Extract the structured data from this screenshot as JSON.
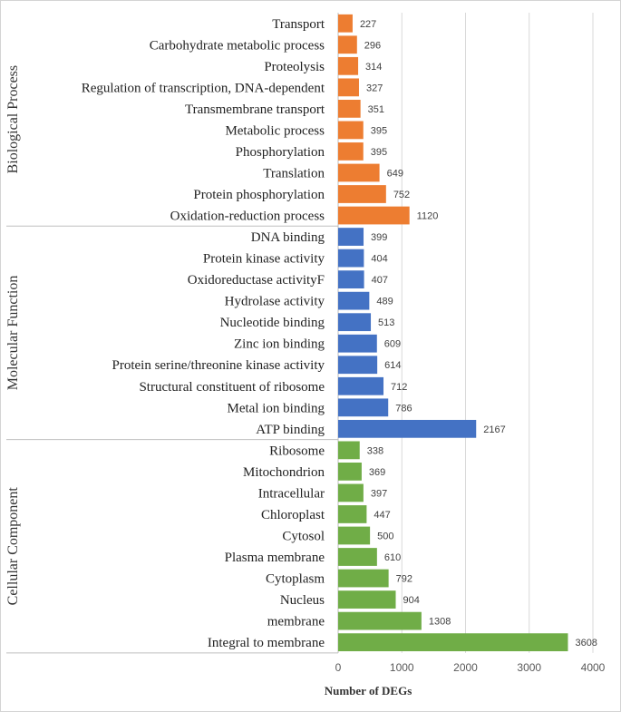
{
  "chart_data": {
    "type": "bar",
    "orientation": "horizontal",
    "title": "",
    "xlabel": "Number of DEGs",
    "ylabel": "",
    "xlim": [
      0,
      4000
    ],
    "xticks": [
      0,
      1000,
      2000,
      3000,
      4000
    ],
    "grid": true,
    "groups": [
      {
        "name": "Biological Process",
        "color": "#ED7D31",
        "categories": [
          "Transport",
          "Carbohydrate metabolic process",
          "Proteolysis",
          "Regulation of transcription, DNA-dependent",
          "Transmembrane transport",
          "Metabolic process",
          "Phosphorylation",
          "Translation",
          "Protein phosphorylation",
          "Oxidation-reduction process"
        ],
        "values": [
          227,
          296,
          314,
          327,
          351,
          395,
          395,
          649,
          752,
          1120
        ]
      },
      {
        "name": "Molecular Function",
        "color": "#4472C4",
        "categories": [
          "DNA binding",
          "Protein kinase activity",
          "Oxidoreductase activityF",
          "Hydrolase activity",
          "Nucleotide binding",
          "Zinc ion binding",
          "Protein serine/threonine kinase activity",
          "Structural constituent of ribosome",
          "Metal ion binding",
          "ATP binding"
        ],
        "values": [
          399,
          404,
          407,
          489,
          513,
          609,
          614,
          712,
          786,
          2167
        ]
      },
      {
        "name": "Cellular Component",
        "color": "#70AD47",
        "categories": [
          "Ribosome",
          "Mitochondrion",
          "Intracellular",
          "Chloroplast",
          "Cytosol",
          "Plasma membrane",
          "Cytoplasm",
          "Nucleus",
          "membrane",
          "Integral to membrane"
        ],
        "values": [
          338,
          369,
          397,
          447,
          500,
          610,
          792,
          904,
          1308,
          3608
        ]
      }
    ]
  }
}
